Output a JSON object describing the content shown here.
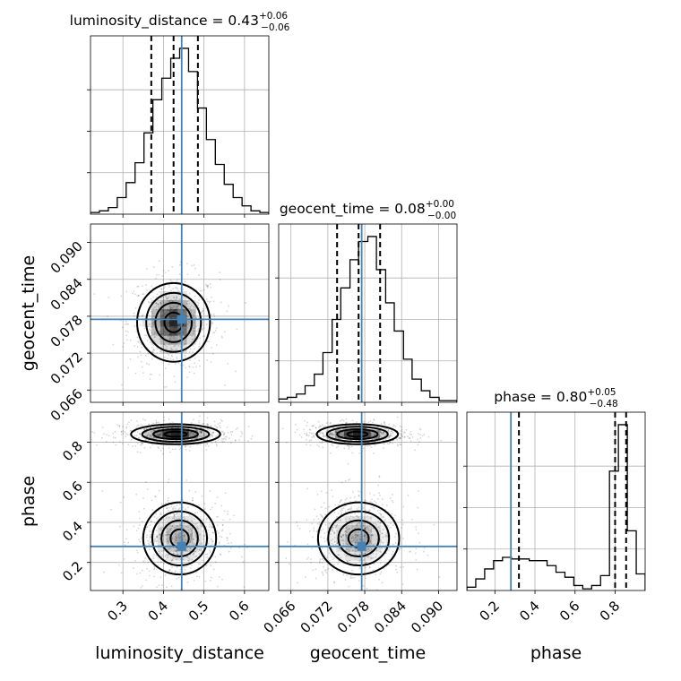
{
  "chart_data": {
    "type": "corner",
    "parameters": [
      "luminosity_distance",
      "geocent_time",
      "phase"
    ],
    "axis_labels": [
      "luminosity_distance",
      "geocent_time",
      "phase"
    ],
    "ranges": [
      [
        0.22,
        0.66
      ],
      [
        0.064,
        0.093
      ],
      [
        0.06,
        0.95
      ]
    ],
    "ticks": [
      [
        0.3,
        0.4,
        0.5,
        0.6
      ],
      [
        0.066,
        0.072,
        0.078,
        0.084,
        0.09
      ],
      [
        0.2,
        0.4,
        0.6,
        0.8
      ]
    ],
    "tick_labels": [
      [
        "0.3",
        "0.4",
        "0.5",
        "0.6"
      ],
      [
        "0.066",
        "0.072",
        "0.078",
        "0.084",
        "0.090"
      ],
      [
        "0.2",
        "0.4",
        "0.6",
        "0.8"
      ]
    ],
    "truths": [
      0.445,
      0.0775,
      0.28
    ],
    "titles": [
      {
        "main": "luminosity_distance = 0.43",
        "sup": "+0.06",
        "sub": "−0.06"
      },
      {
        "main": "geocent_time = 0.08",
        "sup": "+0.00",
        "sub": "−0.00"
      },
      {
        "main": "phase = 0.80",
        "sup": "+0.05",
        "sub": "−0.48"
      }
    ],
    "quantiles": [
      [
        0.37,
        0.425,
        0.485
      ],
      [
        0.0735,
        0.077,
        0.0805
      ],
      [
        0.32,
        0.8,
        0.855
      ]
    ],
    "histograms": [
      {
        "bin_edges": [
          0.22,
          0.242,
          0.264,
          0.286,
          0.308,
          0.33,
          0.352,
          0.374,
          0.396,
          0.418,
          0.44,
          0.462,
          0.484,
          0.506,
          0.528,
          0.55,
          0.572,
          0.594,
          0.616,
          0.638,
          0.66
        ],
        "counts": [
          1,
          2,
          4,
          10,
          19,
          31,
          49,
          69,
          82,
          94,
          100,
          86,
          64,
          45,
          30,
          18,
          10,
          5,
          2,
          1
        ]
      },
      {
        "bin_edges": [
          0.064,
          0.0654,
          0.0669,
          0.0683,
          0.0698,
          0.0712,
          0.0727,
          0.0741,
          0.0756,
          0.077,
          0.0785,
          0.0799,
          0.0814,
          0.0828,
          0.0843,
          0.0857,
          0.0872,
          0.0886,
          0.0901,
          0.0915,
          0.093
        ],
        "counts": [
          2,
          3,
          5,
          10,
          17,
          30,
          50,
          69,
          86,
          97,
          100,
          80,
          60,
          43,
          26,
          14,
          7,
          3,
          1,
          1
        ]
      },
      {
        "bin_edges": [
          0.06,
          0.1045,
          0.149,
          0.1935,
          0.238,
          0.2825,
          0.327,
          0.3715,
          0.416,
          0.4605,
          0.505,
          0.5495,
          0.594,
          0.6385,
          0.683,
          0.7275,
          0.772,
          0.8165,
          0.861,
          0.9055,
          0.95
        ],
        "counts": [
          2,
          7,
          13,
          18,
          20,
          19,
          19,
          18,
          18,
          15,
          11,
          8,
          3,
          1,
          3,
          9,
          72,
          100,
          36,
          10
        ]
      }
    ],
    "joint_2d": [
      {
        "x_param": "luminosity_distance",
        "y_param": "geocent_time",
        "modes": [
          {
            "cx": 0.425,
            "cy": 0.077,
            "sx": 0.045,
            "sy": 0.0032
          }
        ]
      },
      {
        "x_param": "luminosity_distance",
        "y_param": "phase",
        "modes": [
          {
            "cx": 0.43,
            "cy": 0.84,
            "sx": 0.055,
            "sy": 0.025
          },
          {
            "cx": 0.44,
            "cy": 0.32,
            "sx": 0.045,
            "sy": 0.09
          }
        ]
      },
      {
        "x_param": "geocent_time",
        "y_param": "phase",
        "modes": [
          {
            "cx": 0.0768,
            "cy": 0.84,
            "sx": 0.0033,
            "sy": 0.025
          },
          {
            "cx": 0.077,
            "cy": 0.32,
            "sx": 0.0033,
            "sy": 0.09
          }
        ]
      }
    ]
  }
}
